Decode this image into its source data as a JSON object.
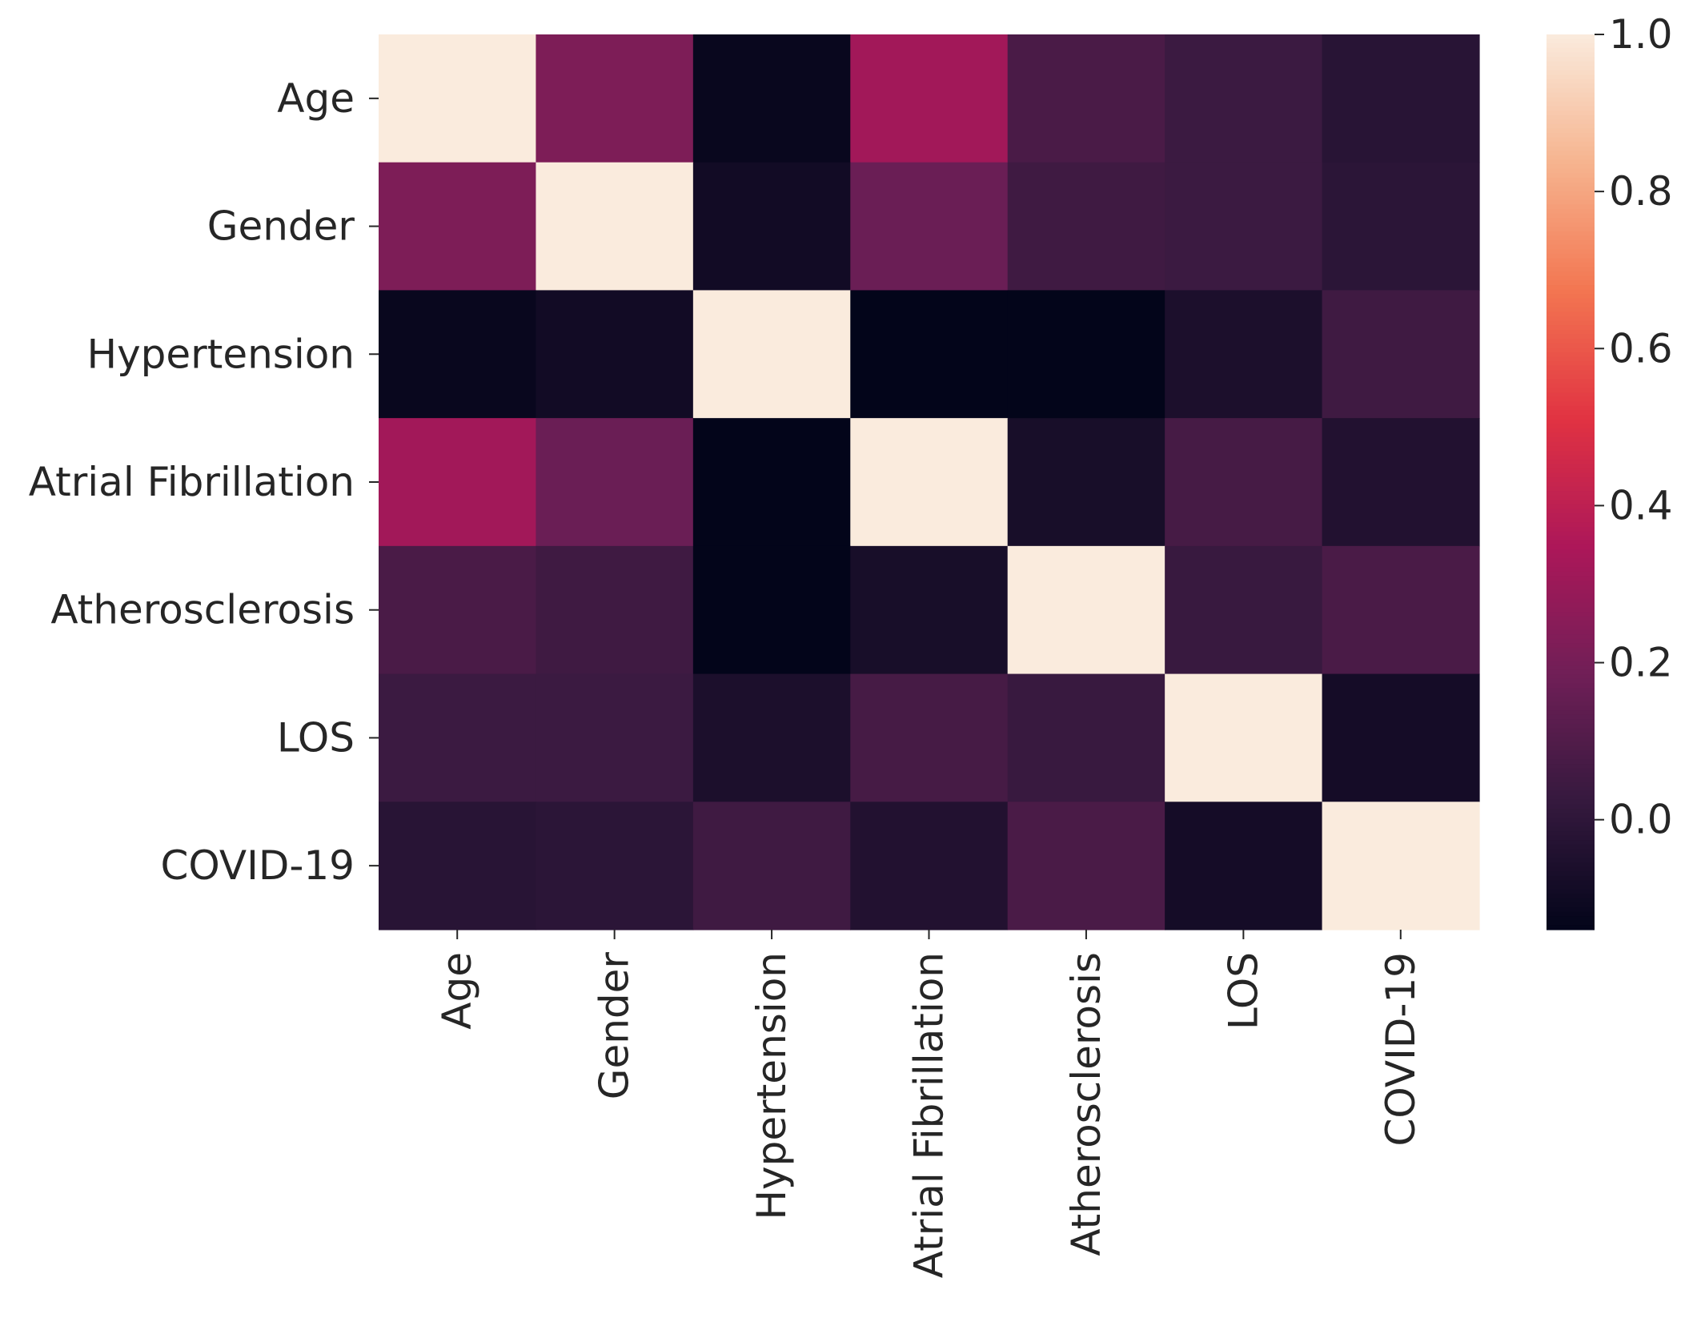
{
  "chart_data": {
    "type": "heatmap",
    "title": "",
    "xlabel": "",
    "ylabel": "",
    "rows": [
      "Age",
      "Gender",
      "Hypertension",
      "Atrial Fibrillation",
      "Atherosclerosis",
      "LOS",
      "COVID-19"
    ],
    "columns": [
      "Age",
      "Gender",
      "Hypertension",
      "Atrial Fibrillation",
      "Atherosclerosis",
      "LOS",
      "COVID-19"
    ],
    "values": [
      [
        1.0,
        0.22,
        -0.12,
        0.32,
        0.08,
        0.04,
        -0.02
      ],
      [
        0.22,
        1.0,
        -0.09,
        0.17,
        0.05,
        0.04,
        -0.01
      ],
      [
        -0.12,
        -0.09,
        1.0,
        -0.14,
        -0.14,
        -0.06,
        0.05
      ],
      [
        0.32,
        0.17,
        -0.14,
        1.0,
        -0.07,
        0.07,
        -0.04
      ],
      [
        0.08,
        0.05,
        -0.14,
        -0.07,
        1.0,
        0.03,
        0.08
      ],
      [
        0.04,
        0.04,
        -0.06,
        0.07,
        0.03,
        1.0,
        -0.08
      ],
      [
        -0.02,
        -0.01,
        0.05,
        -0.04,
        0.08,
        -0.08,
        1.0
      ]
    ],
    "colorbar": {
      "min": -0.14,
      "max": 1.0,
      "ticks": [
        "0.0",
        "0.2",
        "0.4",
        "0.6",
        "0.8",
        "1.0"
      ],
      "tick_values": [
        0.0,
        0.2,
        0.4,
        0.6,
        0.8,
        1.0
      ],
      "colormap": "rocket",
      "colormap_stops": [
        "#03051a",
        "#35193e",
        "#701f57",
        "#ad1759",
        "#e13342",
        "#f37651",
        "#f6b48f",
        "#faebdd"
      ]
    }
  }
}
